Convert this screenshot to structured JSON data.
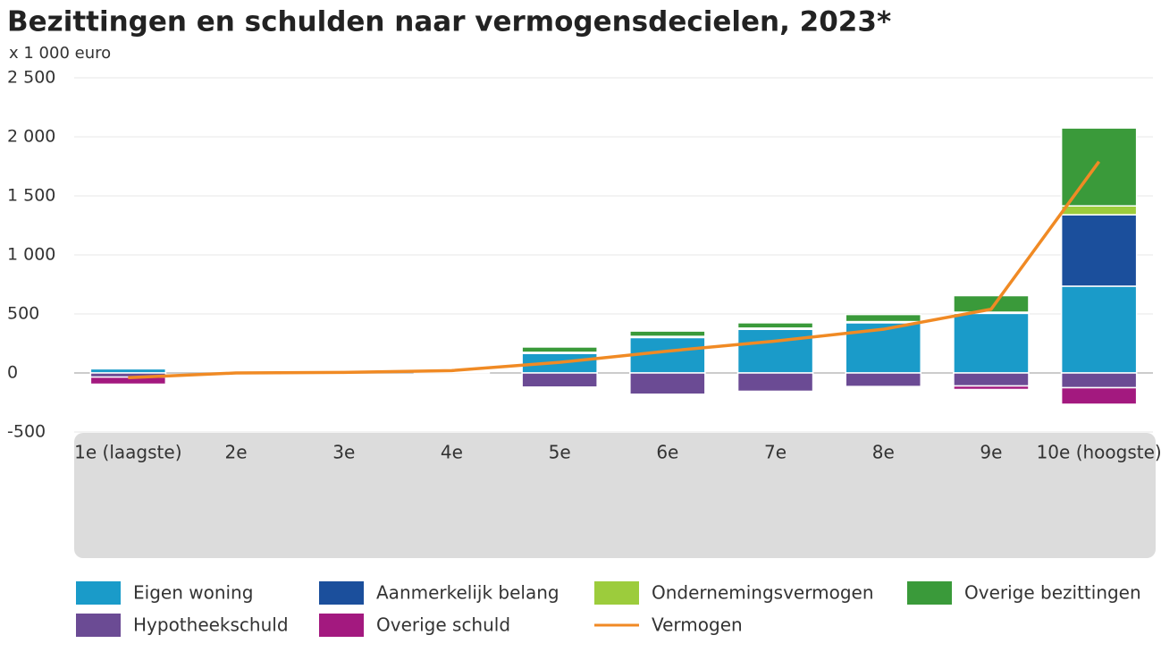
{
  "chart_data": {
    "type": "bar",
    "title": "Bezittingen en schulden naar vermogensdecielen, 2023*",
    "subtitle": "x 1 000 euro",
    "categories": [
      "1e (laagste)",
      "2e",
      "3e",
      "4e",
      "5e",
      "6e",
      "7e",
      "8e",
      "9e",
      "10e (hoogste)"
    ],
    "series": [
      {
        "name": "Eigen woning",
        "type": "bar",
        "color": "#1a9bc9",
        "values": [
          35,
          0,
          0,
          10,
          165,
          300,
          370,
          425,
          505,
          735
        ]
      },
      {
        "name": "Aanmerkelijk belang",
        "type": "bar",
        "color": "#1b4f9c",
        "values": [
          0,
          0,
          0,
          0,
          0,
          0,
          0,
          0,
          0,
          605
        ]
      },
      {
        "name": "Ondernemingsvermogen",
        "type": "bar",
        "color": "#9ccc3c",
        "values": [
          0,
          0,
          0,
          0,
          10,
          10,
          10,
          10,
          10,
          75
        ]
      },
      {
        "name": "Overige bezittingen",
        "type": "bar",
        "color": "#3a9a3a",
        "values": [
          0,
          0,
          0,
          0,
          45,
          45,
          45,
          60,
          140,
          660
        ]
      },
      {
        "name": "Hypotheekschuld",
        "type": "bar",
        "color": "#6b4b94",
        "values": [
          -35,
          0,
          0,
          0,
          -120,
          -180,
          -155,
          -115,
          -110,
          -125
        ]
      },
      {
        "name": "Overige schuld",
        "type": "bar",
        "color": "#a3197f",
        "values": [
          -60,
          0,
          0,
          0,
          -10,
          0,
          0,
          -10,
          -30,
          -140
        ]
      },
      {
        "name": "Vermogen",
        "type": "line",
        "color": "#f08a24",
        "values": [
          -40,
          0,
          5,
          20,
          90,
          185,
          270,
          370,
          540,
          1790
        ]
      }
    ],
    "ylim": [
      -500,
      2500
    ],
    "yticks": [
      -500,
      0,
      500,
      {
        "value": 1000,
        "label": "1 000"
      },
      {
        "value": 1500,
        "label": "1 500"
      },
      {
        "value": 2000,
        "label": "2 000"
      },
      {
        "value": 2500,
        "label": "2 500"
      }
    ],
    "grid": true
  }
}
